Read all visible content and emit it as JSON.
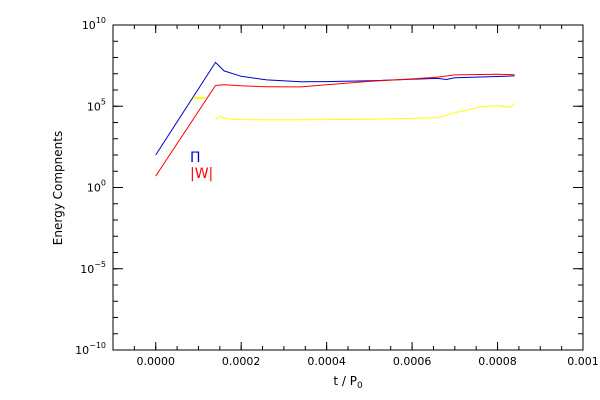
{
  "chart_data": {
    "type": "line",
    "xlabel": "t / P",
    "xlabel_subscript": "0",
    "ylabel": "Energy Compnents",
    "xlim": [
      -0.0001,
      0.001
    ],
    "ylim": [
      1e-10,
      10000000000.0
    ],
    "y_scale": "log",
    "x_ticks": [
      0.0,
      0.0002,
      0.0004,
      0.0006,
      0.0008,
      0.001
    ],
    "x_tick_labels": [
      "0.0000",
      "0.0002",
      "0.0004",
      "0.0006",
      "0.0008",
      "0.001"
    ],
    "y_ticks": [
      {
        "value": 10000000000.0,
        "base": "10",
        "exp": "10"
      },
      {
        "value": 100000.0,
        "base": "10",
        "exp": "5"
      },
      {
        "value": 1,
        "base": "10",
        "exp": "0"
      },
      {
        "value": 1e-05,
        "base": "10",
        "exp": "−5"
      },
      {
        "value": 1e-10,
        "base": "10",
        "exp": "−10"
      }
    ],
    "series": [
      {
        "name": "Π",
        "color": "#0000cc",
        "x": [
          0.0,
          0.00014,
          0.00016,
          0.0002,
          0.00026,
          0.00034,
          0.0004,
          0.0005,
          0.0006,
          0.00066,
          0.00068,
          0.0007,
          0.00072,
          0.0008,
          0.00084
        ],
        "y": [
          100,
          50000000.0,
          15000000.0,
          7000000.0,
          4200000.0,
          3200000.0,
          3300000.0,
          3700000.0,
          4600000.0,
          5200000.0,
          4400000.0,
          5600000.0,
          5900000.0,
          6800000.0,
          7400000.0
        ]
      },
      {
        "name": "|W|",
        "color": "#ff0000",
        "x": [
          0.0,
          0.00014,
          0.00016,
          0.0002,
          0.00024,
          0.00026,
          0.00034,
          0.0004,
          0.0005,
          0.0006,
          0.00066,
          0.0007,
          0.0008,
          0.00084
        ],
        "y": [
          5,
          1900000.0,
          2100000.0,
          1850000.0,
          1650000.0,
          1600000.0,
          1550000.0,
          2100000.0,
          3400000.0,
          4800000.0,
          6200000.0,
          8500000.0,
          9200000.0,
          8800000.0
        ]
      },
      {
        "name": "",
        "color": "#ffff00",
        "x": [
          0.00014,
          0.00015,
          0.00016,
          0.00018,
          0.0002,
          0.0003,
          0.0004,
          0.0005,
          0.0006,
          0.00066,
          0.0007,
          0.00076,
          0.0008,
          0.00082,
          0.00083,
          0.00084
        ],
        "y": [
          15000.0,
          24000.0,
          19000.0,
          16000.0,
          15000.0,
          14500.0,
          15000.0,
          16000.0,
          18000.0,
          20000.0,
          40000.0,
          90000.0,
          110000.0,
          90000.0,
          90000.0,
          150000.0
        ]
      }
    ],
    "legend_placement": "left-middle",
    "grid": false
  }
}
